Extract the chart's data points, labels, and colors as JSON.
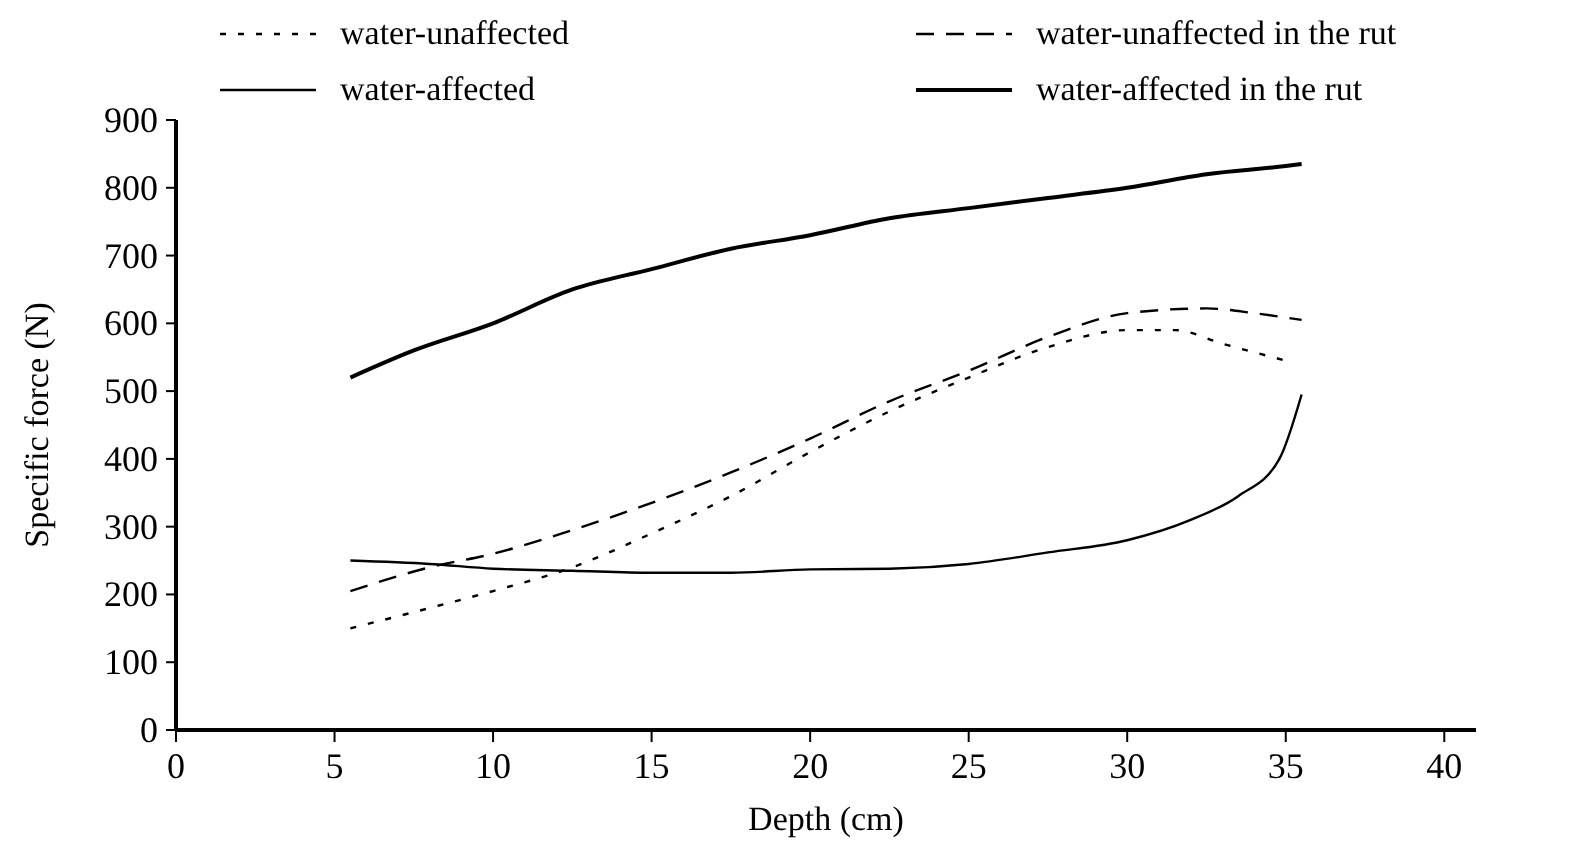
{
  "chart_data": {
    "type": "line",
    "xlabel": "Depth (cm)",
    "ylabel": "Specific force (N)",
    "xlim": [
      0,
      41
    ],
    "xticks": [
      0,
      5,
      10,
      15,
      20,
      25,
      30,
      35,
      40
    ],
    "ylim": [
      0,
      900
    ],
    "yticks": [
      0,
      100,
      200,
      300,
      400,
      500,
      600,
      700,
      800,
      900
    ],
    "grid": false,
    "legend": "top",
    "marker": "none",
    "series": [
      {
        "name": "water-unaffected",
        "color": "#000000",
        "line_style": "dotted",
        "x": [
          5.5,
          8,
          10,
          12.5,
          15,
          17.5,
          20,
          22.5,
          25,
          27.5,
          30,
          31.5,
          33,
          35
        ],
        "values": [
          150,
          180,
          205,
          240,
          290,
          345,
          410,
          470,
          520,
          565,
          590,
          590,
          570,
          545
        ]
      },
      {
        "name": "water-unaffected in the rut",
        "color": "#000000",
        "line_style": "dashed",
        "x": [
          5.5,
          8,
          10,
          12.5,
          15,
          17.5,
          20,
          22.5,
          25,
          27.5,
          30,
          32.5,
          34,
          35.5
        ],
        "values": [
          205,
          240,
          260,
          295,
          335,
          380,
          430,
          485,
          530,
          580,
          615,
          622,
          615,
          605
        ]
      },
      {
        "name": "water-affected",
        "color": "#000000",
        "line_style": "solid",
        "x": [
          5.5,
          8,
          10,
          12.5,
          15,
          17.5,
          20,
          22.5,
          25,
          27.5,
          30,
          32,
          33.5,
          34.8,
          35.5
        ],
        "values": [
          250,
          245,
          238,
          235,
          232,
          232,
          237,
          238,
          245,
          262,
          280,
          310,
          345,
          400,
          495
        ]
      },
      {
        "name": "water-affected in the rut",
        "color": "#000000",
        "line_style": "solid",
        "x": [
          5.5,
          7.5,
          10,
          12.5,
          15,
          17.5,
          20,
          22.5,
          25,
          27.5,
          30,
          32.5,
          35,
          35.5
        ],
        "values": [
          520,
          560,
          600,
          650,
          680,
          710,
          730,
          755,
          770,
          785,
          800,
          820,
          832,
          835
        ]
      }
    ]
  }
}
